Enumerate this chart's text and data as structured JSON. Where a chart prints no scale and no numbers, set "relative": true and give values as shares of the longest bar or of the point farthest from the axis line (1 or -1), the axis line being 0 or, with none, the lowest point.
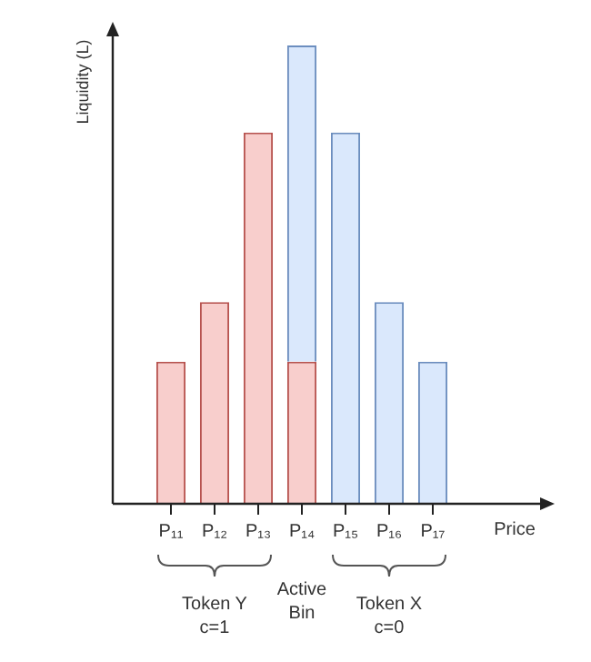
{
  "chart_data": {
    "type": "bar",
    "relative": true,
    "stacked": true,
    "xlabel": "Price",
    "ylabel": "Liquidity (L)",
    "categories": [
      "P₁₁",
      "P₁₂",
      "P₁₃",
      "P₁₄",
      "P₁₅",
      "P₁₆",
      "P₁₇"
    ],
    "series": [
      {
        "color": "#f8cecc",
        "values": [
          0.31,
          0.44,
          0.81,
          0.31,
          null,
          null,
          null
        ]
      },
      {
        "color": "#dae8fc",
        "values": [
          null,
          null,
          null,
          0.69,
          0.81,
          0.44,
          0.31
        ]
      }
    ],
    "annotations": [
      "Token Y\nc=1",
      "Active\nBin",
      "Token X\nc=0"
    ],
    "grid": false,
    "legend": false
  }
}
